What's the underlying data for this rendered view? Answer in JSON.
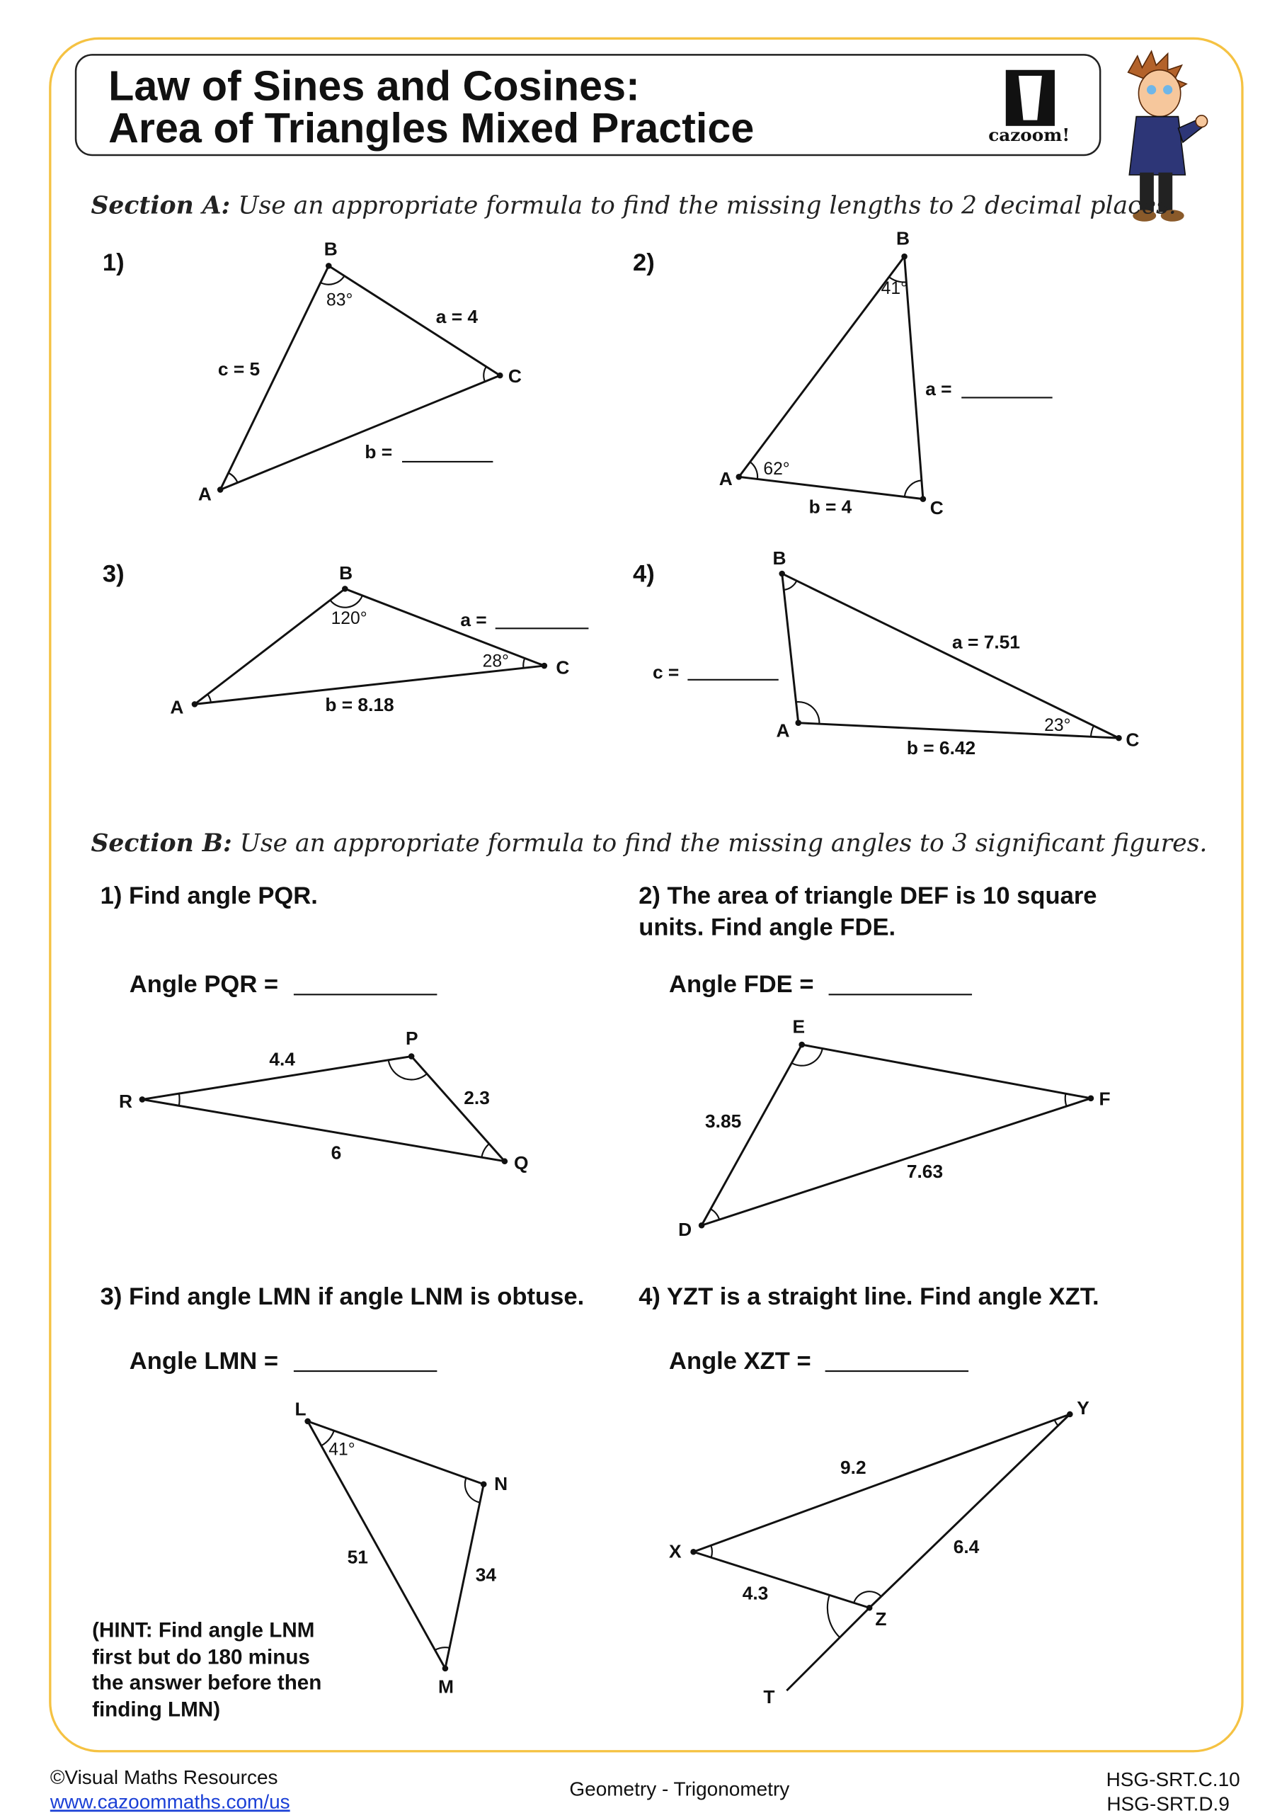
{
  "header": {
    "title_line1": "Law of Sines and Cosines:",
    "title_line2": "Area of Triangles Mixed Practice",
    "logo_text": "cazoom!",
    "border_color": "#f5c242"
  },
  "section_a": {
    "heading": "Section A:",
    "instruction": "Use an appropriate formula to find the missing lengths to 2 decimal places.",
    "problems": [
      {
        "number": "1)",
        "labels": {
          "B": "B",
          "A": "A",
          "C": "C",
          "angle_b": "83°",
          "a": "a = 4",
          "c": "c = 5",
          "b": "b ="
        }
      },
      {
        "number": "2)",
        "labels": {
          "B": "B",
          "A": "A",
          "C": "C",
          "angle_b": "41°",
          "angle_a": "62°",
          "a": "a =",
          "b": "b = 4"
        }
      },
      {
        "number": "3)",
        "labels": {
          "B": "B",
          "A": "A",
          "C": "C",
          "angle_b": "120°",
          "angle_c": "28°",
          "a": "a =",
          "b": "b = 8.18"
        }
      },
      {
        "number": "4)",
        "labels": {
          "B": "B",
          "A": "A",
          "C": "C",
          "angle_c": "23°",
          "a": "a = 7.51",
          "c": "c =",
          "b": "b = 6.42"
        }
      }
    ]
  },
  "section_b": {
    "heading": "Section B:",
    "instruction": "Use an appropriate formula to find the missing angles to 3 significant figures.",
    "problems": [
      {
        "question": "1) Find angle PQR.",
        "answer_label": "Angle PQR =",
        "labels": {
          "P": "P",
          "Q": "Q",
          "R": "R",
          "rp": "4.4",
          "pq": "2.3",
          "rq": "6"
        }
      },
      {
        "question_line1": "2) The area of triangle DEF is 10 square",
        "question_line2": "units. Find angle FDE.",
        "answer_label": "Angle FDE =",
        "labels": {
          "D": "D",
          "E": "E",
          "F": "F",
          "de": "3.85",
          "df": "7.63"
        }
      },
      {
        "question": "3) Find angle LMN if angle LNM is obtuse.",
        "answer_label": "Angle LMN =",
        "labels": {
          "L": "L",
          "M": "M",
          "N": "N",
          "angle_l": "41°",
          "lm": "51",
          "nm": "34"
        },
        "hint": [
          "(HINT: Find angle LNM",
          "first but do 180 minus",
          "the answer before then",
          "finding LMN)"
        ]
      },
      {
        "question": "4) YZT is a straight line. Find angle XZT.",
        "answer_label": "Angle XZT =",
        "labels": {
          "X": "X",
          "Y": "Y",
          "Z": "Z",
          "T": "T",
          "xy": "9.2",
          "zy": "6.4",
          "xz": "4.3"
        }
      }
    ]
  },
  "footer": {
    "copyright": "©Visual Maths Resources",
    "url": "www.cazoommaths.com/us",
    "topic": "Geometry - Trigonometry",
    "standard1": "HSG-SRT.C.10",
    "standard2": "HSG-SRT.D.9"
  }
}
